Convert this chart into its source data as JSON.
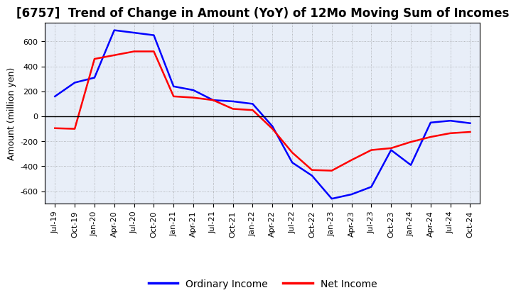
{
  "title": "[6757]  Trend of Change in Amount (YoY) of 12Mo Moving Sum of Incomes",
  "ylabel": "Amount (million yen)",
  "x_labels": [
    "Jul-19",
    "Oct-19",
    "Jan-20",
    "Apr-20",
    "Jul-20",
    "Oct-20",
    "Jan-21",
    "Apr-21",
    "Jul-21",
    "Oct-21",
    "Jan-22",
    "Apr-22",
    "Jul-22",
    "Oct-22",
    "Jan-23",
    "Apr-23",
    "Jul-23",
    "Oct-23",
    "Jan-24",
    "Apr-24",
    "Jul-24",
    "Oct-24"
  ],
  "ordinary_income": [
    160,
    270,
    310,
    690,
    670,
    650,
    240,
    210,
    130,
    120,
    100,
    -80,
    -370,
    -475,
    -660,
    -625,
    -565,
    -270,
    -390,
    -50,
    -35,
    -55
  ],
  "net_income": [
    -95,
    -100,
    460,
    490,
    520,
    520,
    160,
    150,
    130,
    60,
    50,
    -100,
    -290,
    -430,
    -435,
    -350,
    -270,
    -255,
    -205,
    -165,
    -135,
    -125
  ],
  "ordinary_color": "#0000ff",
  "net_color": "#ff0000",
  "ylim": [
    -700,
    750
  ],
  "yticks": [
    -600,
    -400,
    -200,
    0,
    200,
    400,
    600
  ],
  "plot_bg_color": "#e8eef8",
  "background_color": "#ffffff",
  "grid_color": "#888888",
  "legend_ordinary": "Ordinary Income",
  "legend_net": "Net Income",
  "title_fontsize": 12,
  "axis_fontsize": 9,
  "tick_fontsize": 8
}
